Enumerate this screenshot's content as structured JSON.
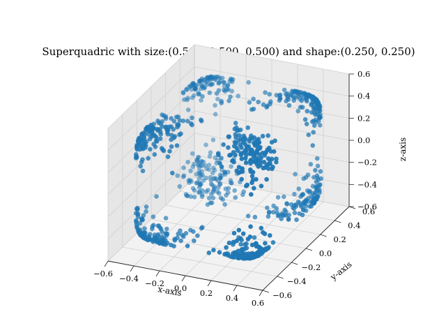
{
  "chart_data": {
    "type": "scatter",
    "projection": "3d",
    "title": "Superquadric with size:(0.500, 0.500, 0.500) and shape:(0.250, 0.250)",
    "xlabel": "x-axis",
    "ylabel": "y-axis",
    "zlabel": "z-axis",
    "xlim": [
      -0.6,
      0.6
    ],
    "ylim": [
      -0.6,
      0.6
    ],
    "zlim": [
      -0.6,
      0.6
    ],
    "xticks": [
      "−0.6",
      "−0.4",
      "−0.2",
      "0.0",
      "0.2",
      "0.4",
      "0.6"
    ],
    "yticks": [
      "−0.6",
      "−0.4",
      "−0.2",
      "0.0",
      "0.2",
      "0.4",
      "0.6"
    ],
    "zticks": [
      "−0.6",
      "−0.4",
      "−0.2",
      "0.0",
      "0.2",
      "0.4",
      "0.6"
    ],
    "grid": true,
    "marker_color": "#1f77b4",
    "superquadric": {
      "size": [
        0.5,
        0.5,
        0.5
      ],
      "shape": [
        0.25,
        0.25
      ],
      "point_count": 1000
    }
  }
}
